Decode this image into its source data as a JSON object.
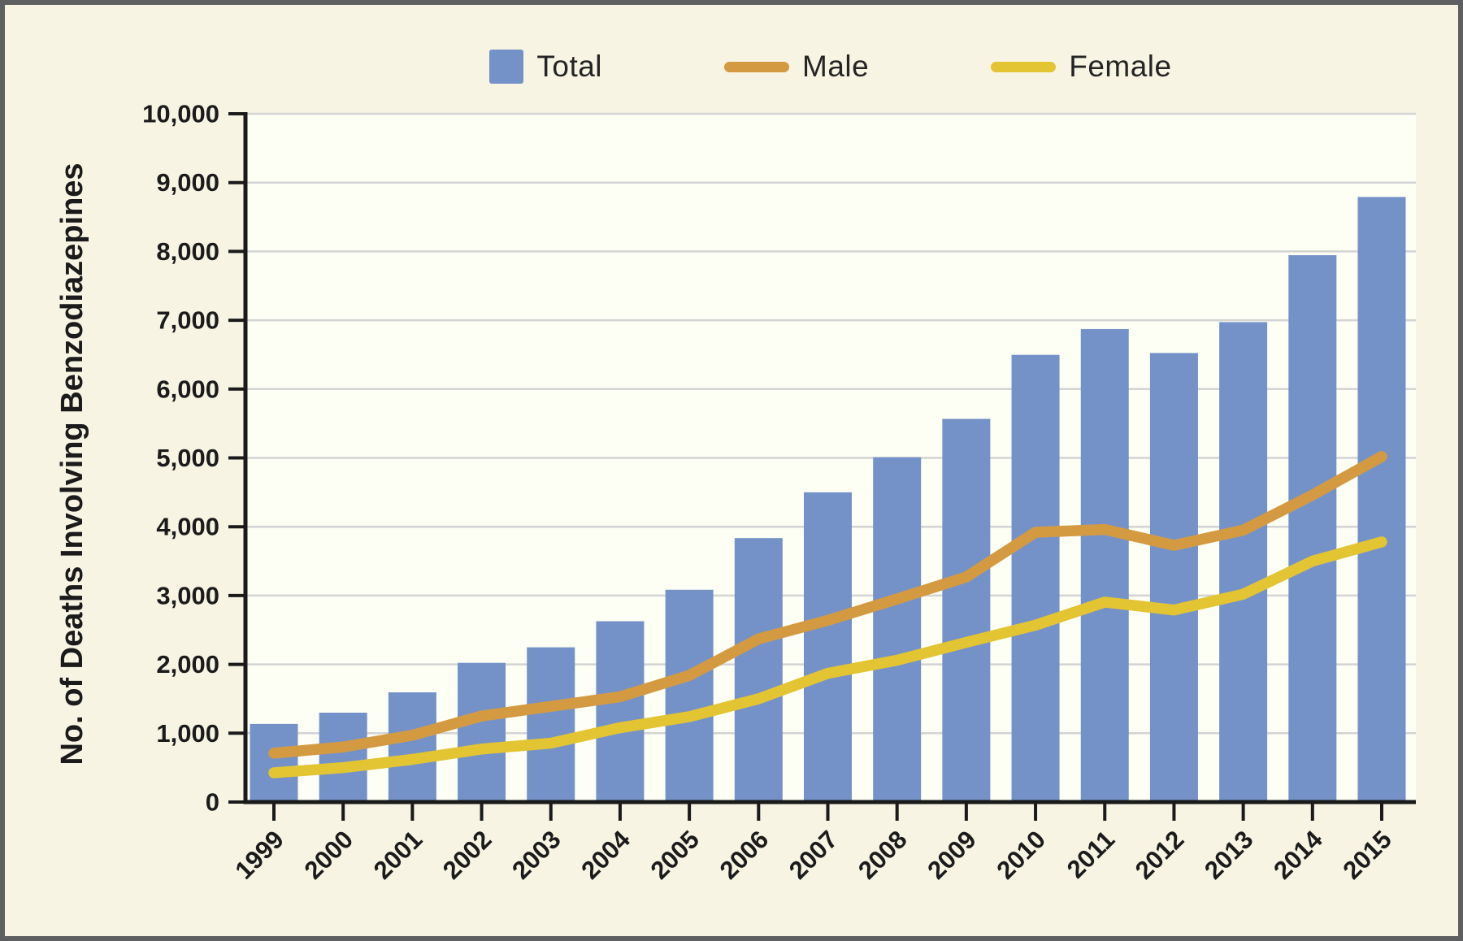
{
  "figure": {
    "background_color": "#f8f4e3",
    "plot_background_color": "#fdfef4",
    "frame_border_color": "#5e5f61",
    "gridline_color": "#d4d4d4",
    "axis_color": "#1a1a1a",
    "tick_label_color": "#1b1b1b"
  },
  "legend": {
    "items": [
      {
        "label": "Total",
        "swatch": "square",
        "color": "#7492c8"
      },
      {
        "label": "Male",
        "swatch": "line",
        "color": "#d49a42"
      },
      {
        "label": "Female",
        "swatch": "line",
        "color": "#e3c433"
      }
    ]
  },
  "chart_data": {
    "type": "bar",
    "title": "",
    "xlabel": "",
    "ylabel": "No. of Deaths Involving Benzodiazepines",
    "ylim": [
      0,
      10000
    ],
    "ytick_interval": 1000,
    "ytick_labels": [
      "0",
      "1,000",
      "2,000",
      "3,000",
      "4,000",
      "5,000",
      "6,000",
      "7,000",
      "8,000",
      "9,000",
      "10,000"
    ],
    "grid": true,
    "legend_position": "top",
    "categories": [
      "1999",
      "2000",
      "2001",
      "2002",
      "2003",
      "2004",
      "2005",
      "2006",
      "2007",
      "2008",
      "2009",
      "2010",
      "2011",
      "2012",
      "2013",
      "2014",
      "2015"
    ],
    "bar_series": {
      "name": "Total",
      "color": "#7492c8",
      "values": [
        1135,
        1298,
        1594,
        2022,
        2248,
        2627,
        3084,
        3835,
        4500,
        5010,
        5567,
        6497,
        6872,
        6524,
        6973,
        7945,
        8791
      ]
    },
    "line_series": [
      {
        "name": "Male",
        "color": "#d49a42",
        "values": [
          710,
          800,
          970,
          1250,
          1390,
          1530,
          1840,
          2370,
          2640,
          2950,
          3270,
          3920,
          3960,
          3730,
          3950,
          4460,
          5020
        ]
      },
      {
        "name": "Female",
        "color": "#e3c433",
        "values": [
          425,
          500,
          620,
          770,
          855,
          1080,
          1240,
          1500,
          1870,
          2060,
          2320,
          2570,
          2905,
          2790,
          3020,
          3500,
          3780
        ]
      }
    ]
  }
}
